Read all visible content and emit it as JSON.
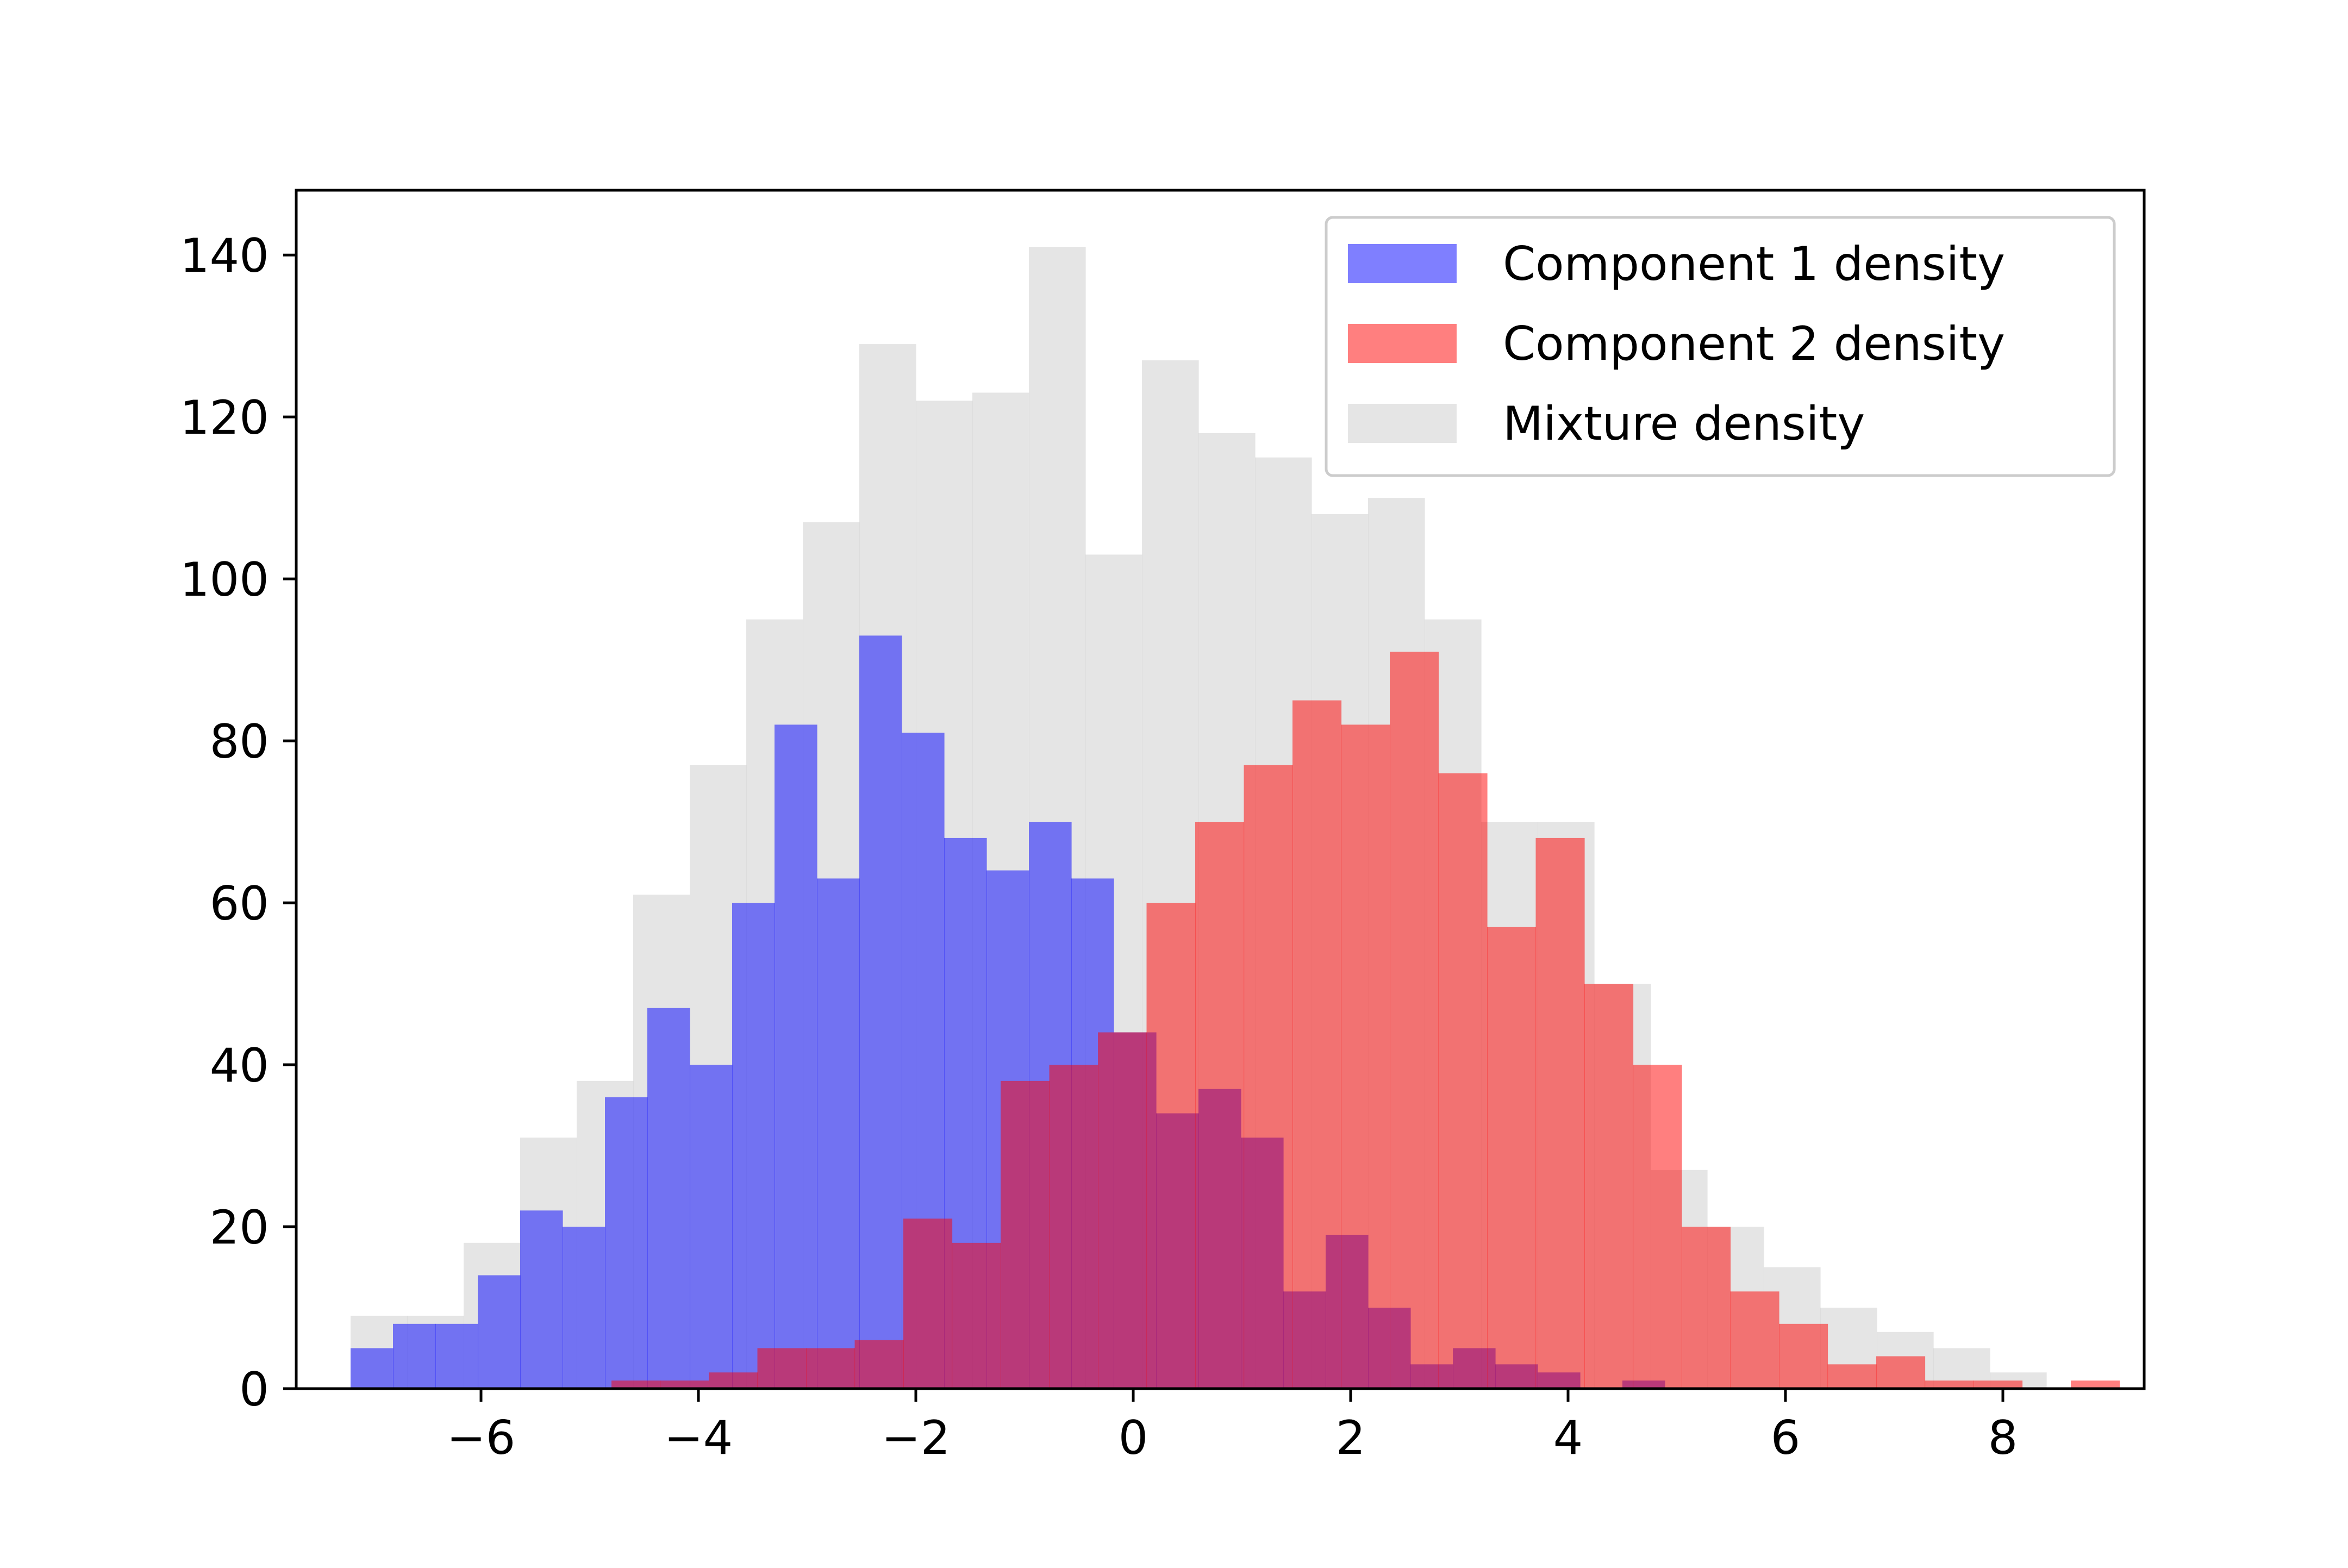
{
  "chart_data": {
    "type": "histogram",
    "xlim": [
      -7.7,
      9.3
    ],
    "ylim": [
      0,
      148
    ],
    "xticks": [
      -6,
      -4,
      -2,
      0,
      2,
      4,
      6,
      8
    ],
    "yticks": [
      0,
      20,
      40,
      60,
      80,
      100,
      120,
      140
    ],
    "xtick_labels": [
      "−6",
      "−4",
      "−2",
      "0",
      "2",
      "4",
      "6",
      "8"
    ],
    "ytick_labels": [
      "0",
      "20",
      "40",
      "60",
      "80",
      "100",
      "120",
      "140"
    ],
    "grid": false,
    "legend_position": "top-right",
    "legend": [
      {
        "label": "Component 1 density",
        "color": "#0000ff",
        "opacity": 0.5
      },
      {
        "label": "Component 2 density",
        "color": "#ff0000",
        "opacity": 0.5
      },
      {
        "label": "Mixture density",
        "color": "#cccccc",
        "opacity": 0.5
      }
    ],
    "series": [
      {
        "key": "mixture",
        "label": "Mixture density",
        "color": "#cccccc",
        "opacity": 0.5,
        "bin_start": -7.2,
        "bin_width": 0.52,
        "counts": [
          9,
          9,
          18,
          31,
          38,
          61,
          77,
          95,
          107,
          129,
          122,
          123,
          141,
          103,
          127,
          118,
          115,
          108,
          110,
          95,
          70,
          70,
          50,
          27,
          20,
          15,
          10,
          7,
          5,
          2
        ]
      },
      {
        "key": "component1",
        "label": "Component 1 density",
        "color": "#0000ff",
        "opacity": 0.5,
        "bin_start": -7.2,
        "bin_width": 0.39,
        "counts": [
          5,
          8,
          8,
          14,
          22,
          20,
          36,
          47,
          40,
          60,
          82,
          63,
          93,
          81,
          68,
          64,
          70,
          63,
          44,
          34,
          37,
          31,
          12,
          19,
          10,
          3,
          5,
          3,
          2,
          0,
          1
        ]
      },
      {
        "key": "component2",
        "label": "Component 2 density",
        "color": "#ff0000",
        "opacity": 0.5,
        "bin_start": -4.8,
        "bin_width": 0.4475,
        "counts": [
          1,
          1,
          2,
          5,
          5,
          6,
          21,
          18,
          38,
          40,
          44,
          60,
          70,
          77,
          85,
          82,
          91,
          76,
          57,
          68,
          50,
          40,
          20,
          12,
          8,
          3,
          4,
          1,
          1,
          0,
          1
        ]
      }
    ]
  }
}
